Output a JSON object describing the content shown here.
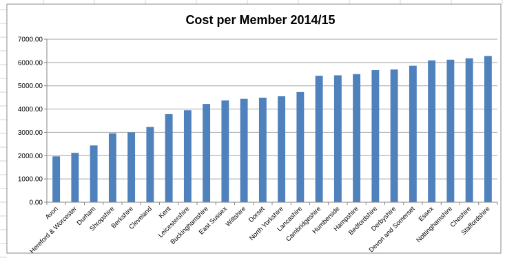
{
  "colors": {
    "bar": "#4f81bd",
    "gridline": "#a6a6a6",
    "axis": "#868686",
    "sheet_grid": "#d4d4d4"
  },
  "chart_data": {
    "type": "bar",
    "title": "Cost per Member 2014/15",
    "xlabel": "",
    "ylabel": "",
    "ylim": [
      0,
      7000
    ],
    "yticks": [
      "0.00",
      "1000.00",
      "2000.00",
      "3000.00",
      "4000.00",
      "5000.00",
      "6000.00",
      "7000.00"
    ],
    "grid": true,
    "legend": "none",
    "categories": [
      "Avon",
      "Hereford & Worcester",
      "Durham",
      "Shropshire",
      "Berkshire",
      "Cleveland",
      "Kent",
      "Leicestershire",
      "Buckinghamshire",
      "East Sussex",
      "Wiltshire",
      "Dorset",
      "North Yorkshire",
      "Lancashire",
      "Cambridgeshire",
      "Humberside",
      "Hampshire",
      "Bedfordshire",
      "Derbyshire",
      "Devon and Somerset",
      "Essex",
      "Nottinghamshire",
      "Cheshire",
      "Staffordshire"
    ],
    "values": [
      1970,
      2120,
      2440,
      2960,
      3000,
      3230,
      3780,
      3950,
      4220,
      4370,
      4440,
      4490,
      4550,
      4730,
      5430,
      5450,
      5500,
      5670,
      5700,
      5860,
      6090,
      6120,
      6180,
      6280
    ]
  }
}
